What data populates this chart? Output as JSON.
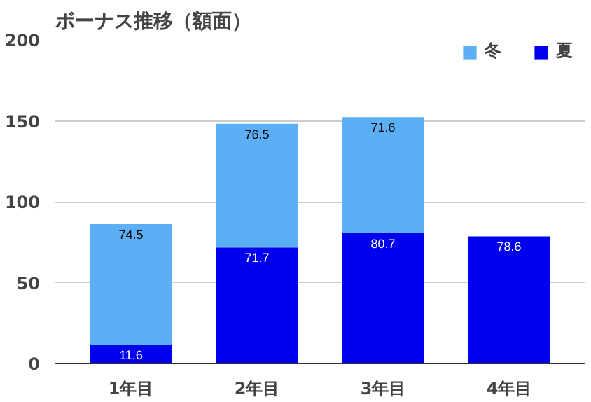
{
  "chart_data": {
    "type": "bar",
    "title": "ボーナス推移（額面）",
    "categories": [
      "1年目",
      "2年目",
      "3年目",
      "4年目"
    ],
    "stacked": true,
    "series": [
      {
        "name": "夏",
        "color": "#0000ee",
        "values": [
          11.6,
          71.7,
          80.7,
          78.6
        ]
      },
      {
        "name": "冬",
        "color": "#5aaff5",
        "values": [
          74.5,
          76.5,
          71.6,
          null
        ]
      }
    ],
    "ylim": [
      0,
      200
    ],
    "yticks": [
      0,
      50,
      100,
      150,
      200
    ],
    "grid": "y",
    "legend": "top right",
    "data_labels": true
  }
}
